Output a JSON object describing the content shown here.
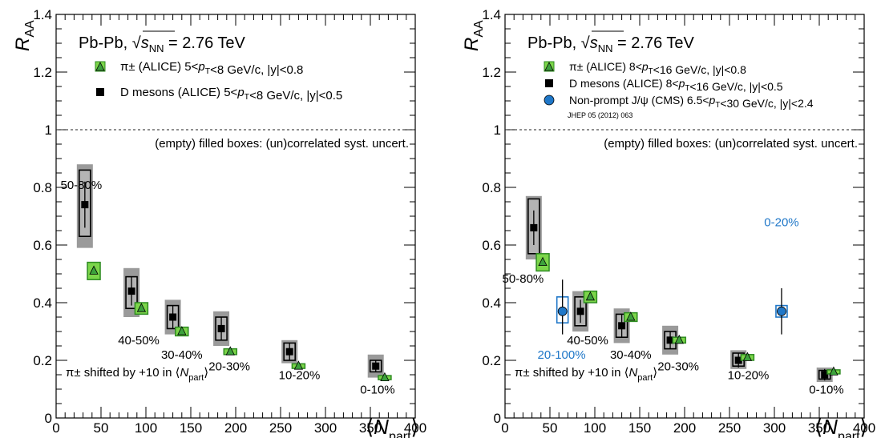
{
  "chart_data": [
    {
      "type": "scatter",
      "ylabel": "R",
      "ylabel_sub": "AA",
      "xlabel": "⟨N",
      "xlabel_sub": "part",
      "xlabel_close": "⟩",
      "xlim": [
        0,
        400
      ],
      "ylim": [
        0,
        1.4
      ],
      "xticks": [
        0,
        50,
        100,
        150,
        200,
        250,
        300,
        350,
        400
      ],
      "xtick_labels": [
        "0",
        "50",
        "100",
        "150",
        "200",
        "250",
        "300",
        "350",
        "400"
      ],
      "yticks": [
        0,
        0.2,
        0.4,
        0.6,
        0.8,
        1,
        1.2,
        1.4
      ],
      "ytick_labels": [
        "0",
        "0.2",
        "0.4",
        "0.6",
        "0.8",
        "1",
        "1.2",
        "1.4"
      ],
      "reference_line": 1,
      "header": {
        "system": "Pb-Pb,",
        "sqrt": "s",
        "sub": "NN",
        "energy": "= 2.76 TeV"
      },
      "legend": [
        {
          "marker": "triangle-green",
          "text": "π± (ALICE) 5<pT<8 GeV/c, |y|<0.8"
        },
        {
          "marker": "square-black",
          "text": "D mesons (ALICE) 5<pT<8 GeV/c, |y|<0.5"
        }
      ],
      "box_note": "(empty) filled boxes: (un)correlated syst. uncert.",
      "shift_note": {
        "pre": "π± shifted by +10 in ⟨N",
        "sub": "part",
        "post": "⟩"
      },
      "series": [
        {
          "name": "D mesons (ALICE)",
          "marker": "square-black",
          "points": [
            {
              "x": 32,
              "y": 0.74,
              "err": 0.08,
              "corr": [
                0.59,
                0.88
              ],
              "unc": [
                0.63,
                0.86
              ]
            },
            {
              "x": 84,
              "y": 0.44,
              "err": 0.05,
              "corr": [
                0.35,
                0.52
              ],
              "unc": [
                0.38,
                0.49
              ]
            },
            {
              "x": 130,
              "y": 0.35,
              "err": 0.04,
              "corr": [
                0.29,
                0.41
              ],
              "unc": [
                0.31,
                0.39
              ]
            },
            {
              "x": 184,
              "y": 0.31,
              "err": 0.04,
              "corr": [
                0.25,
                0.37
              ],
              "unc": [
                0.27,
                0.35
              ]
            },
            {
              "x": 260,
              "y": 0.23,
              "err": 0.03,
              "corr": [
                0.19,
                0.27
              ],
              "unc": [
                0.2,
                0.26
              ]
            },
            {
              "x": 356,
              "y": 0.18,
              "err": 0.02,
              "corr": [
                0.14,
                0.22
              ],
              "unc": [
                0.16,
                0.2
              ]
            }
          ]
        },
        {
          "name": "π± (ALICE)",
          "marker": "triangle-green",
          "points": [
            {
              "x": 42,
              "y": 0.51,
              "corr": [
                0.48,
                0.54
              ],
              "unc": [
                0.49,
                0.53
              ]
            },
            {
              "x": 95,
              "y": 0.38,
              "corr": [
                0.36,
                0.4
              ],
              "unc": [
                0.365,
                0.395
              ]
            },
            {
              "x": 140,
              "y": 0.3,
              "corr": [
                0.285,
                0.315
              ],
              "unc": [
                0.29,
                0.31
              ]
            },
            {
              "x": 194,
              "y": 0.23,
              "corr": [
                0.22,
                0.24
              ],
              "unc": [
                0.222,
                0.238
              ]
            },
            {
              "x": 270,
              "y": 0.18,
              "corr": [
                0.172,
                0.188
              ],
              "unc": [
                0.174,
                0.186
              ]
            },
            {
              "x": 366,
              "y": 0.14,
              "corr": [
                0.133,
                0.147
              ],
              "unc": [
                0.135,
                0.145
              ]
            }
          ]
        }
      ],
      "centrality_labels": [
        {
          "text": "50-80%",
          "x": 28,
          "y": 0.795,
          "color": "#000000"
        },
        {
          "text": "40-50%",
          "x": 92,
          "y": 0.255,
          "color": "#000000"
        },
        {
          "text": "30-40%",
          "x": 140,
          "y": 0.205,
          "color": "#000000"
        },
        {
          "text": "20-30%",
          "x": 193,
          "y": 0.165,
          "color": "#000000"
        },
        {
          "text": "10-20%",
          "x": 271,
          "y": 0.135,
          "color": "#000000"
        },
        {
          "text": "0-10%",
          "x": 358,
          "y": 0.085,
          "color": "#000000"
        }
      ]
    },
    {
      "type": "scatter",
      "ylabel": "R",
      "ylabel_sub": "AA",
      "xlabel": "⟨N",
      "xlabel_sub": "part",
      "xlabel_close": "⟩",
      "xlim": [
        0,
        400
      ],
      "ylim": [
        0,
        1.4
      ],
      "xticks": [
        0,
        50,
        100,
        150,
        200,
        250,
        300,
        350,
        400
      ],
      "xtick_labels": [
        "0",
        "50",
        "100",
        "150",
        "200",
        "250",
        "300",
        "350",
        "400"
      ],
      "yticks": [
        0,
        0.2,
        0.4,
        0.6,
        0.8,
        1,
        1.2,
        1.4
      ],
      "ytick_labels": [
        "0",
        "0.2",
        "0.4",
        "0.6",
        "0.8",
        "1",
        "1.2",
        "1.4"
      ],
      "reference_line": 1,
      "header": {
        "system": "Pb-Pb,",
        "sqrt": "s",
        "sub": "NN",
        "energy": "= 2.76 TeV"
      },
      "legend": [
        {
          "marker": "triangle-green",
          "text": "π± (ALICE) 8<pT<16 GeV/c, |y|<0.8"
        },
        {
          "marker": "square-black",
          "text": "D mesons (ALICE) 8<pT<16 GeV/c, |y|<0.5"
        },
        {
          "marker": "circle-blue",
          "text": "Non-prompt J/ψ (CMS) 6.5<pT<30 GeV/c, |y|<2.4"
        }
      ],
      "reference": "JHEP 05 (2012) 063",
      "box_note": "(empty) filled boxes: (un)correlated syst. uncert.",
      "shift_note": {
        "pre": "π± shifted by +10 in ⟨N",
        "sub": "part",
        "post": "⟩"
      },
      "series": [
        {
          "name": "D mesons (ALICE)",
          "marker": "square-black",
          "points": [
            {
              "x": 32,
              "y": 0.66,
              "err": 0.06,
              "corr": [
                0.55,
                0.77
              ],
              "unc": [
                0.57,
                0.76
              ]
            },
            {
              "x": 84,
              "y": 0.37,
              "err": 0.04,
              "corr": [
                0.3,
                0.44
              ],
              "unc": [
                0.32,
                0.42
              ]
            },
            {
              "x": 130,
              "y": 0.32,
              "err": 0.04,
              "corr": [
                0.26,
                0.38
              ],
              "unc": [
                0.28,
                0.36
              ]
            },
            {
              "x": 184,
              "y": 0.27,
              "err": 0.03,
              "corr": [
                0.22,
                0.32
              ],
              "unc": [
                0.24,
                0.3
              ]
            },
            {
              "x": 260,
              "y": 0.2,
              "err": 0.025,
              "corr": [
                0.17,
                0.235
              ],
              "unc": [
                0.18,
                0.225
              ]
            },
            {
              "x": 356,
              "y": 0.15,
              "err": 0.02,
              "corr": [
                0.125,
                0.175
              ],
              "unc": [
                0.135,
                0.165
              ]
            }
          ]
        },
        {
          "name": "π± (ALICE)",
          "marker": "triangle-green",
          "points": [
            {
              "x": 42,
              "y": 0.54,
              "corr": [
                0.51,
                0.57
              ],
              "unc": [
                0.52,
                0.56
              ]
            },
            {
              "x": 95,
              "y": 0.42,
              "corr": [
                0.4,
                0.44
              ],
              "unc": [
                0.405,
                0.435
              ]
            },
            {
              "x": 140,
              "y": 0.35,
              "corr": [
                0.335,
                0.365
              ],
              "unc": [
                0.34,
                0.36
              ]
            },
            {
              "x": 194,
              "y": 0.27,
              "corr": [
                0.26,
                0.28
              ],
              "unc": [
                0.262,
                0.278
              ]
            },
            {
              "x": 270,
              "y": 0.21,
              "corr": [
                0.2,
                0.22
              ],
              "unc": [
                0.203,
                0.217
              ]
            },
            {
              "x": 366,
              "y": 0.16,
              "corr": [
                0.153,
                0.167
              ],
              "unc": [
                0.155,
                0.165
              ]
            }
          ]
        },
        {
          "name": "Non-prompt J/ψ (CMS)",
          "marker": "circle-blue",
          "points": [
            {
              "x": 64,
              "y": 0.37,
              "err_low": 0.08,
              "err_high": 0.11,
              "box": [
                0.33,
                0.42
              ]
            },
            {
              "x": 308,
              "y": 0.37,
              "err_low": 0.08,
              "err_high": 0.08,
              "box": [
                0.35,
                0.39
              ]
            }
          ]
        }
      ],
      "centrality_labels": [
        {
          "text": "50-80%",
          "x": 20,
          "y": 0.47,
          "color": "#000000"
        },
        {
          "text": "40-50%",
          "x": 92,
          "y": 0.255,
          "color": "#000000"
        },
        {
          "text": "20-100%",
          "x": 63,
          "y": 0.205,
          "color": "#1f77c8"
        },
        {
          "text": "30-40%",
          "x": 140,
          "y": 0.205,
          "color": "#000000"
        },
        {
          "text": "20-30%",
          "x": 193,
          "y": 0.165,
          "color": "#000000"
        },
        {
          "text": "0-20%",
          "x": 308,
          "y": 0.665,
          "color": "#1f77c8"
        },
        {
          "text": "10-20%",
          "x": 271,
          "y": 0.135,
          "color": "#000000"
        },
        {
          "text": "0-10%",
          "x": 358,
          "y": 0.085,
          "color": "#000000"
        }
      ]
    }
  ],
  "colors": {
    "triangle_fill": "#3ca23c",
    "triangle_box": "#7cd64a",
    "triangle_box_edge": "#2e8b22",
    "square_fill": "#000000",
    "corr_box": "#9a9a9a",
    "unc_box_fill": "#b4b4b4",
    "circle_fill": "#1f77c8",
    "circle_box_edge": "#1f77c8"
  }
}
